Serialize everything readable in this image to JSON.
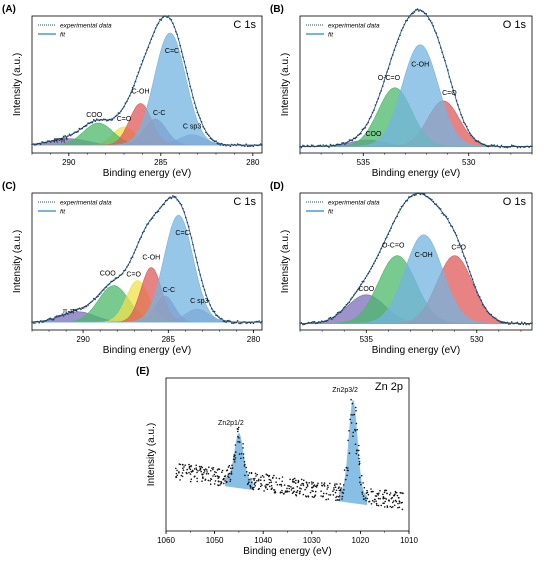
{
  "figure": {
    "legend": {
      "data_label": "experimental data",
      "fit_label": "fit",
      "data_color": "#1f4e79",
      "fit_color": "#74b4e0"
    },
    "colors": {
      "cc": "#74b4e0",
      "coh": "#e05a5a",
      "co": "#f0e04a",
      "coo": "#4cb86a",
      "pipi": "#7a6fb8",
      "csp3": "#9c8abf",
      "oco": "#4cb86a",
      "zn": "#74b4e0"
    }
  },
  "chart_data": [
    {
      "panel": "(A)",
      "type": "area",
      "title": "C 1s",
      "xlabel": "Binding energy (eV)",
      "ylabel": "Intensity (a.u.)",
      "xlim": [
        292,
        279.5
      ],
      "ylim": [
        0,
        1.05
      ],
      "xticks": [
        "290",
        "285",
        "280"
      ],
      "xtick_values": [
        290,
        285,
        280
      ],
      "baseline": 0.06,
      "peaks": [
        {
          "label": "C=C",
          "center": 284.5,
          "height": 0.86,
          "width": 0.85,
          "color": "#74b4e0"
        },
        {
          "label": "C-OH",
          "center": 286.1,
          "height": 0.32,
          "width": 0.6,
          "color": "#e05a5a"
        },
        {
          "label": "C-C",
          "center": 285.3,
          "height": 0.2,
          "width": 0.6,
          "color": "#9c6aa8"
        },
        {
          "label": "C=O",
          "center": 287.0,
          "height": 0.14,
          "width": 0.6,
          "color": "#f0e04a"
        },
        {
          "label": "COO",
          "center": 288.4,
          "height": 0.17,
          "width": 0.8,
          "color": "#4cb86a"
        },
        {
          "label": "π-π*",
          "center": 290.0,
          "height": 0.05,
          "width": 1.0,
          "color": "#7a6fb8"
        },
        {
          "label": "C sp3",
          "center": 283.3,
          "height": 0.08,
          "width": 0.7,
          "color": "#9c8abf"
        }
      ]
    },
    {
      "panel": "(B)",
      "type": "area",
      "title": "O 1s",
      "xlabel": "Binding energy (eV)",
      "ylabel": "Intensity (a.u.)",
      "xlim": [
        538,
        527
      ],
      "ylim": [
        0,
        1.05
      ],
      "xticks": [
        "535",
        "530"
      ],
      "xtick_values": [
        535,
        530
      ],
      "baseline": 0.05,
      "peaks": [
        {
          "label": "C-OH",
          "center": 532.3,
          "height": 0.78,
          "width": 0.85,
          "color": "#74b4e0"
        },
        {
          "label": "O-C=O",
          "center": 533.5,
          "height": 0.45,
          "width": 0.8,
          "color": "#4cb86a"
        },
        {
          "label": "C=O",
          "center": 531.2,
          "height": 0.35,
          "width": 0.75,
          "color": "#e05a5a"
        },
        {
          "label": "COO",
          "center": 534.8,
          "height": 0.05,
          "width": 0.8,
          "color": "#7a6fb8"
        }
      ]
    },
    {
      "panel": "(C)",
      "type": "area",
      "title": "C 1s",
      "xlabel": "Binding energy (eV)",
      "ylabel": "Intensity (a.u.)",
      "xlim": [
        293,
        279.5
      ],
      "ylim": [
        0,
        1.05
      ],
      "xticks": [
        "290",
        "285",
        "280"
      ],
      "xtick_values": [
        290,
        285,
        280
      ],
      "baseline": 0.06,
      "peaks": [
        {
          "label": "C=C",
          "center": 284.4,
          "height": 0.82,
          "width": 0.85,
          "color": "#74b4e0"
        },
        {
          "label": "C-OH",
          "center": 286.0,
          "height": 0.42,
          "width": 0.6,
          "color": "#e05a5a"
        },
        {
          "label": "C=O",
          "center": 286.8,
          "height": 0.32,
          "width": 0.65,
          "color": "#f0e04a"
        },
        {
          "label": "COO",
          "center": 288.2,
          "height": 0.28,
          "width": 0.9,
          "color": "#4cb86a"
        },
        {
          "label": "C-C",
          "center": 285.2,
          "height": 0.2,
          "width": 0.55,
          "color": "#9c6aa8"
        },
        {
          "label": "π-π*",
          "center": 290.3,
          "height": 0.08,
          "width": 1.0,
          "color": "#7a6fb8"
        },
        {
          "label": "C sp3",
          "center": 283.3,
          "height": 0.1,
          "width": 0.7,
          "color": "#9c8abf"
        }
      ]
    },
    {
      "panel": "(D)",
      "type": "area",
      "title": "O 1s",
      "xlabel": "Binding energy (eV)",
      "ylabel": "Intensity (a.u.)",
      "xlim": [
        538,
        527.5
      ],
      "ylim": [
        0,
        1.05
      ],
      "xticks": [
        "535",
        "530"
      ],
      "xtick_values": [
        535,
        530
      ],
      "baseline": 0.05,
      "peaks": [
        {
          "label": "C-OH",
          "center": 532.4,
          "height": 0.68,
          "width": 0.85,
          "color": "#74b4e0"
        },
        {
          "label": "O-C=O",
          "center": 533.6,
          "height": 0.52,
          "width": 0.85,
          "color": "#4cb86a"
        },
        {
          "label": "C=O",
          "center": 531.0,
          "height": 0.52,
          "width": 0.8,
          "color": "#e05a5a"
        },
        {
          "label": "COO",
          "center": 535.0,
          "height": 0.22,
          "width": 0.85,
          "color": "#7a6fb8"
        }
      ]
    },
    {
      "panel": "(E)",
      "type": "scatter",
      "title": "Zn 2p",
      "xlabel": "Binding energy (eV)",
      "ylabel": "Intensity (a.u.)",
      "xlim": [
        1060,
        1010
      ],
      "ylim": [
        0,
        1.05
      ],
      "xticks": [
        "1060",
        "1050",
        "1040",
        "1030",
        "1020",
        "1010"
      ],
      "xtick_values": [
        1060,
        1050,
        1040,
        1030,
        1020,
        1010
      ],
      "peaks": [
        {
          "label": "Zn2p1/2",
          "center": 1045,
          "height": 0.32,
          "width": 0.9,
          "color": "#74b4e0"
        },
        {
          "label": "Zn2p3/2",
          "center": 1021.5,
          "height": 0.65,
          "width": 0.9,
          "color": "#74b4e0"
        }
      ]
    }
  ]
}
